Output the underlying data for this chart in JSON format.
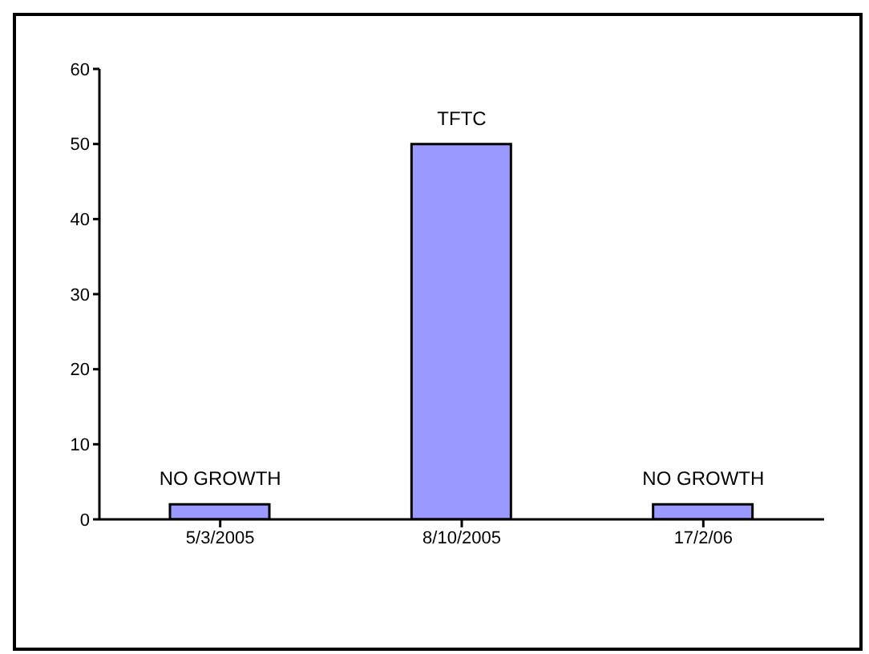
{
  "chart_data": {
    "type": "bar",
    "categories": [
      "5/3/2005",
      "8/10/2005",
      "17/2/06"
    ],
    "values": [
      2,
      50,
      2
    ],
    "color": "#9999ff",
    "ylim": [
      0,
      60
    ],
    "yticks": [
      0,
      10,
      20,
      30,
      40,
      50,
      60
    ],
    "grid": false,
    "legend": false,
    "annotations": [
      {
        "text": "NO GROWTH",
        "x": "5/3/2005",
        "y": 2
      },
      {
        "text": "TFTC",
        "x": "8/10/2005",
        "y": 50
      },
      {
        "text": "NO GROWTH",
        "x": "17/2/06",
        "y": 2
      }
    ]
  }
}
